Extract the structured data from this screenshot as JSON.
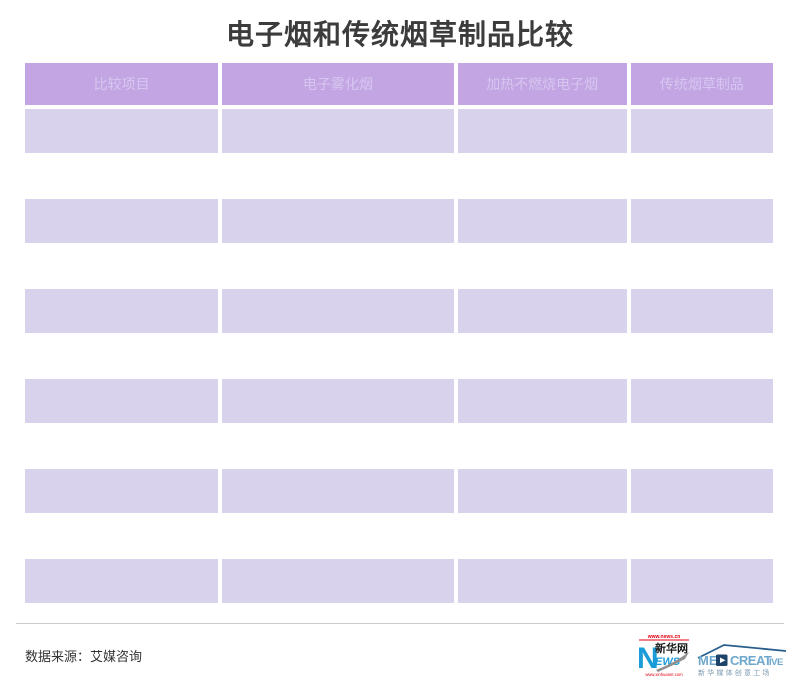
{
  "title": "电子烟和传统烟草制品比较",
  "table": {
    "headers": [
      "比较项目",
      "电子雾化烟",
      "加热不燃烧电子烟",
      "传统烟草制品"
    ],
    "row_count": 6
  },
  "chart_data": {
    "type": "table",
    "title": "电子烟和传统烟草制品比较",
    "columns": [
      "比较项目",
      "电子雾化烟",
      "加热不燃烧电子烟",
      "传统烟草制品"
    ],
    "rows": [
      [
        "",
        "",
        "",
        ""
      ],
      [
        "",
        "",
        "",
        ""
      ],
      [
        "",
        "",
        "",
        ""
      ],
      [
        "",
        "",
        "",
        ""
      ],
      [
        "",
        "",
        "",
        ""
      ],
      [
        "",
        "",
        "",
        ""
      ]
    ],
    "note": "table body cells are rendered as empty lavender bands with no visible text",
    "source": "数据来源：艾媒咨询"
  },
  "footer": {
    "source": "数据来源：艾媒咨询",
    "xinhua_logo": {
      "url_top": "www.news.cn",
      "letter": "N",
      "name_cn": "新华网",
      "letters_rest": "EWS",
      "url_bottom": "www.xinhuanet.com"
    },
    "medcreative_logo": {
      "part1": "ME",
      "part2": "CREAT",
      "part3": "IVE",
      "subtitle": "新华媒体创意工场"
    }
  },
  "colors": {
    "header_bg": "#c2a5e2",
    "header_text": "#d7c7f0",
    "row_bg": "#d8d2ed",
    "xinhua_blue": "#1a9cd8",
    "xinhua_red": "#e60012",
    "med_blue": "#6fa8cd",
    "med_navy": "#1d4369"
  }
}
